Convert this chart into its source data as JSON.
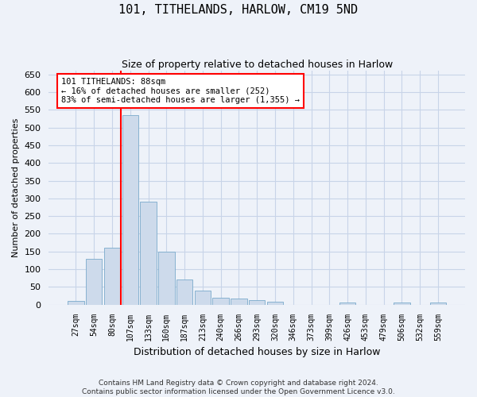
{
  "title": "101, TITHELANDS, HARLOW, CM19 5ND",
  "subtitle": "Size of property relative to detached houses in Harlow",
  "xlabel": "Distribution of detached houses by size in Harlow",
  "ylabel": "Number of detached properties",
  "categories": [
    "27sqm",
    "54sqm",
    "80sqm",
    "107sqm",
    "133sqm",
    "160sqm",
    "187sqm",
    "213sqm",
    "240sqm",
    "266sqm",
    "293sqm",
    "320sqm",
    "346sqm",
    "373sqm",
    "399sqm",
    "426sqm",
    "453sqm",
    "479sqm",
    "506sqm",
    "532sqm",
    "559sqm"
  ],
  "values": [
    10,
    130,
    160,
    535,
    290,
    150,
    70,
    40,
    20,
    18,
    13,
    8,
    0,
    0,
    0,
    5,
    0,
    0,
    5,
    0,
    5
  ],
  "bar_color": "#cddaeb",
  "bar_edge_color": "#7aaacb",
  "grid_color": "#c8d4e8",
  "background_color": "#eef2f9",
  "vline_x_index": 2.5,
  "vline_color": "red",
  "annotation_text": "101 TITHELANDS: 88sqm\n← 16% of detached houses are smaller (252)\n83% of semi-detached houses are larger (1,355) →",
  "annotation_box_color": "white",
  "annotation_box_edge_color": "red",
  "footer": "Contains HM Land Registry data © Crown copyright and database right 2024.\nContains public sector information licensed under the Open Government Licence v3.0.",
  "ylim": [
    0,
    660
  ],
  "yticks": [
    0,
    50,
    100,
    150,
    200,
    250,
    300,
    350,
    400,
    450,
    500,
    550,
    600,
    650
  ]
}
